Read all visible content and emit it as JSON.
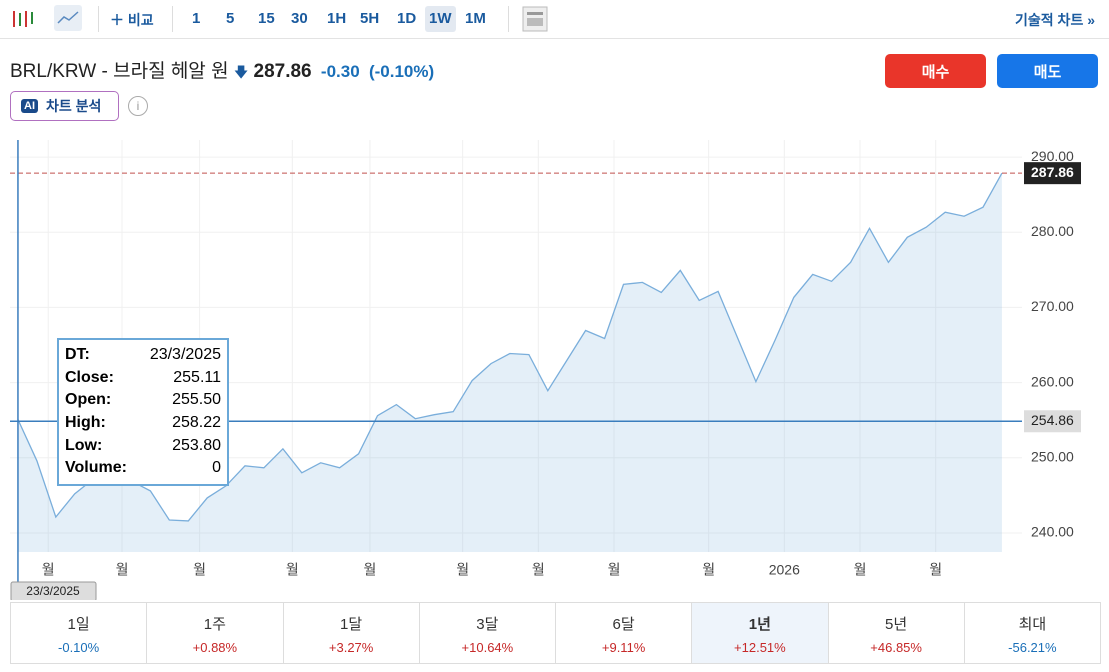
{
  "toolbar": {
    "compare": "비교",
    "intervals": [
      "1",
      "5",
      "15",
      "30",
      "1H",
      "5H",
      "1D",
      "1W",
      "1M"
    ],
    "active_interval": 7,
    "technical": "기술적 차트 »"
  },
  "quote": {
    "symbol": "BRL/KRW - 브라질 헤알 원",
    "price": "287.86",
    "change": "-0.30",
    "change_pct": "(-0.10%)"
  },
  "buttons": {
    "buy": "매수",
    "sell": "매도"
  },
  "ai": {
    "badge": "AI",
    "label": "차트 분석"
  },
  "chart_data": {
    "type": "area",
    "x": [
      0,
      1,
      2,
      3,
      4,
      5,
      6,
      7,
      8,
      9,
      10,
      11,
      12,
      13,
      14,
      15,
      16,
      17,
      18,
      19,
      20,
      21,
      22,
      23,
      24,
      25,
      26,
      27,
      28,
      29,
      30,
      31,
      32,
      33,
      34,
      35,
      36,
      37,
      38,
      39,
      40,
      41,
      42,
      43,
      44,
      45,
      46,
      47,
      48,
      49,
      50,
      51,
      52
    ],
    "series": [
      {
        "color": "#7aaedb",
        "values": [
          255.11,
          249.6,
          242.13,
          245.2,
          247.2,
          248.3,
          246.9,
          245.6,
          241.73,
          241.6,
          244.67,
          246.27,
          248.93,
          248.67,
          251.2,
          248.0,
          249.33,
          248.67,
          250.53,
          255.6,
          257.07,
          255.2,
          255.73,
          256.13,
          260.27,
          262.53,
          263.87,
          263.73,
          258.93,
          262.93,
          266.93,
          265.87,
          273.07,
          273.33,
          272.0,
          274.93,
          270.93,
          272.13,
          266.13,
          260.13,
          265.6,
          271.33,
          274.4,
          273.47,
          276.0,
          280.53,
          276.0,
          279.33,
          280.67,
          282.67,
          282.13,
          283.33,
          287.86
        ]
      }
    ],
    "xlim": [
      -0.42,
      53.06
    ],
    "xticks": [
      {
        "value": 1.6,
        "label": "월"
      },
      {
        "value": 5.5,
        "label": "월"
      },
      {
        "value": 9.6,
        "label": "월"
      },
      {
        "value": 14.5,
        "label": "월"
      },
      {
        "value": 18.6,
        "label": "월"
      },
      {
        "value": 23.5,
        "label": "월"
      },
      {
        "value": 27.5,
        "label": "월"
      },
      {
        "value": 31.5,
        "label": "월"
      },
      {
        "value": 36.5,
        "label": "월"
      },
      {
        "value": 40.5,
        "label": "2026"
      },
      {
        "value": 44.5,
        "label": "월"
      },
      {
        "value": 48.5,
        "label": "월"
      }
    ],
    "ylim": [
      237.47,
      292.27
    ],
    "yticks": [
      {
        "value": 240,
        "label": "240.00"
      },
      {
        "value": 250,
        "label": "250.00"
      },
      {
        "value": 260,
        "label": "260.00"
      },
      {
        "value": 270,
        "label": "270.00"
      },
      {
        "value": 280,
        "label": "280.00"
      },
      {
        "value": 290,
        "label": "290.00"
      }
    ],
    "grid": true,
    "last_price": 287.86,
    "crosshair": {
      "x": 0,
      "x_label": "23/3/2025",
      "y": 254.86
    },
    "tooltip": [
      [
        "DT:",
        "23/3/2025"
      ],
      [
        "Close:",
        "255.11"
      ],
      [
        "Open:",
        "255.50"
      ],
      [
        "High:",
        "258.22"
      ],
      [
        "Low:",
        "253.80"
      ],
      [
        "Volume:",
        "0"
      ]
    ]
  },
  "periods": [
    {
      "label": "1일",
      "change": "-0.10%"
    },
    {
      "label": "1주",
      "change": "+0.88%"
    },
    {
      "label": "1달",
      "change": "+3.27%"
    },
    {
      "label": "3달",
      "change": "+10.64%"
    },
    {
      "label": "6달",
      "change": "+9.11%"
    },
    {
      "label": "1년",
      "change": "+12.51%"
    },
    {
      "label": "5년",
      "change": "+46.85%"
    },
    {
      "label": "최대",
      "change": "-56.21%"
    }
  ],
  "active_period": 5
}
